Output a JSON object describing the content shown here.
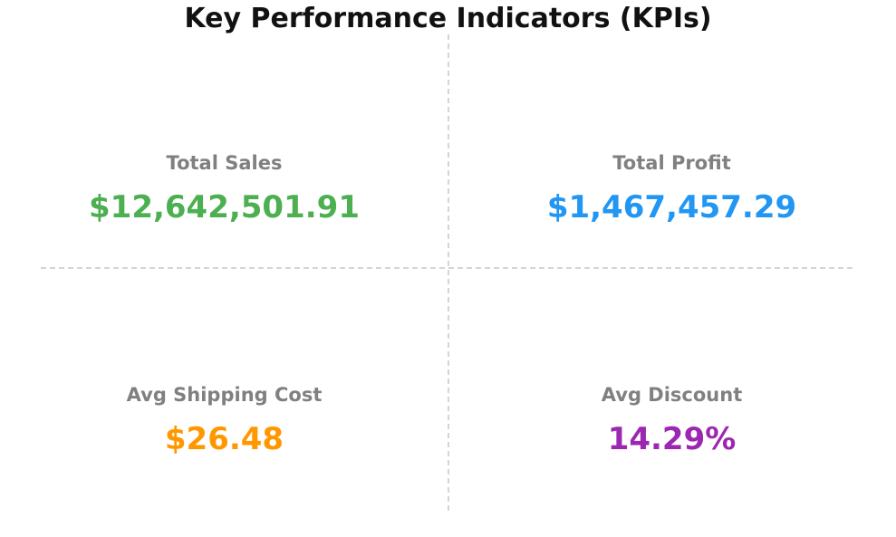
{
  "title": "Key Performance Indicators (KPIs)",
  "colors": {
    "title": "#111111",
    "label": "#808080",
    "divider": "#d5d5d5",
    "total_sales": "#4CAF50",
    "total_profit": "#2196F3",
    "avg_shipping_cost": "#FF9800",
    "avg_discount": "#9C27B0"
  },
  "kpis": [
    {
      "label": "Total Sales",
      "value": "$12,642,501.91",
      "color": "#4CAF50"
    },
    {
      "label": "Total Profit",
      "value": "$1,467,457.29",
      "color": "#2196F3"
    },
    {
      "label": "Avg Shipping Cost",
      "value": "$26.48",
      "color": "#FF9800"
    },
    {
      "label": "Avg Discount",
      "value": "14.29%",
      "color": "#9C27B0"
    }
  ],
  "chart_data": {
    "type": "table",
    "title": "Key Performance Indicators (KPIs)",
    "layout": "2x2 grid with dashed cross dividers, white background, no axes",
    "items": [
      {
        "label": "Total Sales",
        "value": 12642501.91,
        "formatted": "$12,642,501.91",
        "color": "#4CAF50",
        "position": "top-left"
      },
      {
        "label": "Total Profit",
        "value": 1467457.29,
        "formatted": "$1,467,457.29",
        "color": "#2196F3",
        "position": "top-right"
      },
      {
        "label": "Avg Shipping Cost",
        "value": 26.48,
        "formatted": "$26.48",
        "color": "#FF9800",
        "position": "bottom-left"
      },
      {
        "label": "Avg Discount",
        "value": 14.29,
        "formatted": "14.29%",
        "color": "#9C27B0",
        "position": "bottom-right"
      }
    ]
  }
}
